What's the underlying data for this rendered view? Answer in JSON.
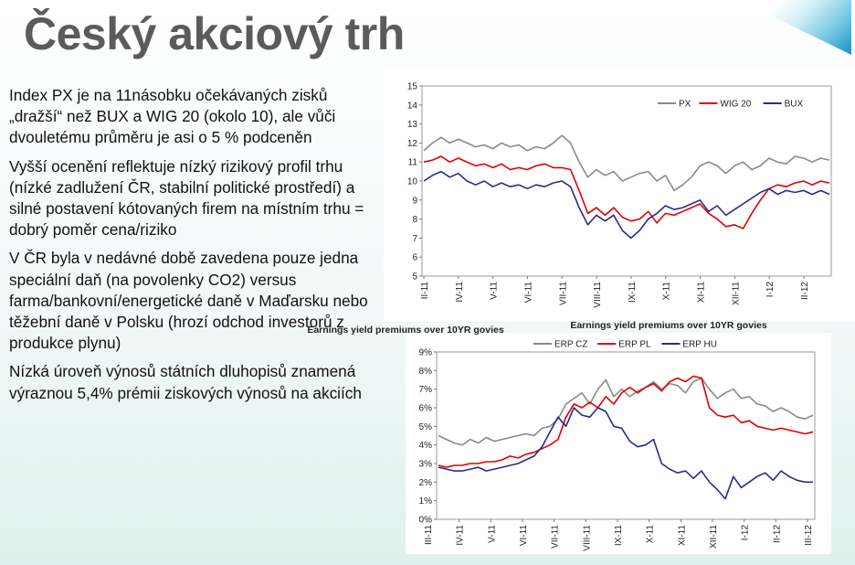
{
  "slide": {
    "title": "Český akciový trh",
    "bullets": [
      "Index PX je na 11násobku očekávaných zisků „dražší“ než BUX a WIG 20 (okolo 10), ale vůči dvouletému průměru je asi o 5 % podceněn",
      "Vyšší ocenění reflektuje nízký rizikový profil trhu (nízké zadlužení ČR, stabilní politické prostředí) a silné postavení kótovaných firem na místním trhu = dobrý poměr cena/riziko",
      "V ČR byla v nedávné době zavedena pouze jedna speciální daň (na povolenky CO2) versus farma/bankovní/energetické daně v Maďarsku nebo těžební daně v Polsku (hrozí odchod investorů z produkce plynu)",
      "Nízká úroveň výnosů státních dluhopisů znamená výraznou 5,4% prémii ziskových výnosů na akciích"
    ]
  },
  "colors": {
    "grey_series": "#8a8a8a",
    "red_series": "#e00000",
    "blue_series": "#2a2a8a",
    "title": "#5b5b5b"
  },
  "chart_data": [
    {
      "type": "line",
      "title": "",
      "ylim": [
        5,
        15
      ],
      "y_ticks": [
        "5",
        "6",
        "7",
        "8",
        "9",
        "10",
        "11",
        "12",
        "13",
        "14",
        "15"
      ],
      "x_ticks": [
        "II-11",
        "IV-11",
        "V-11",
        "VI-11",
        "VII-11",
        "VIII-11",
        "IX-11",
        "X-11",
        "XI-11",
        "XII-11",
        "I-12",
        "II-12"
      ],
      "legend_position": "top-right",
      "series": [
        {
          "name": "PX",
          "color": "#8a8a8a",
          "values": [
            11.6,
            12.0,
            12.3,
            12.0,
            12.2,
            12.0,
            11.8,
            11.9,
            11.7,
            12.0,
            11.8,
            11.9,
            11.6,
            11.8,
            11.7,
            12.0,
            12.4,
            12.0,
            11.0,
            10.2,
            10.6,
            10.3,
            10.5,
            10.0,
            10.2,
            10.4,
            10.5,
            10.0,
            10.3,
            9.5,
            9.8,
            10.2,
            10.8,
            11.0,
            10.8,
            10.4,
            10.8,
            11.0,
            10.6,
            10.8,
            11.2,
            11.0,
            10.9,
            11.3,
            11.2,
            11.0,
            11.2,
            11.1
          ]
        },
        {
          "name": "WIG 20",
          "color": "#e00000",
          "values": [
            11.0,
            11.1,
            11.3,
            11.0,
            11.2,
            11.0,
            10.8,
            10.9,
            10.7,
            10.9,
            10.6,
            10.7,
            10.6,
            10.8,
            10.9,
            10.7,
            10.7,
            10.6,
            9.5,
            8.3,
            8.6,
            8.2,
            8.6,
            8.1,
            7.9,
            8.0,
            8.4,
            7.8,
            8.3,
            8.2,
            8.4,
            8.6,
            8.8,
            8.3,
            8.0,
            7.6,
            7.7,
            7.5,
            8.3,
            9.0,
            9.6,
            9.8,
            9.7,
            9.9,
            10.0,
            9.8,
            10.0,
            9.9
          ]
        },
        {
          "name": "BUX",
          "color": "#2a2a8a",
          "values": [
            10.0,
            10.3,
            10.5,
            10.2,
            10.4,
            10.0,
            9.8,
            10.0,
            9.7,
            9.9,
            9.7,
            9.8,
            9.6,
            9.8,
            9.7,
            9.9,
            10.0,
            9.7,
            8.6,
            7.7,
            8.2,
            7.9,
            8.2,
            7.4,
            7.0,
            7.4,
            8.0,
            8.3,
            8.7,
            8.5,
            8.6,
            8.8,
            9.0,
            8.4,
            8.7,
            8.2,
            8.5,
            8.8,
            9.1,
            9.4,
            9.6,
            9.3,
            9.5,
            9.4,
            9.5,
            9.3,
            9.5,
            9.3
          ]
        }
      ]
    },
    {
      "type": "line",
      "title": "Earnings yield premiums over 10YR govies",
      "ylim": [
        0,
        9
      ],
      "y_ticks": [
        "0%",
        "1%",
        "2%",
        "3%",
        "4%",
        "5%",
        "6%",
        "7%",
        "8%",
        "9%"
      ],
      "x_ticks": [
        "III-11",
        "IV-11",
        "V-11",
        "VI-11",
        "VII-11",
        "VIII-11",
        "IX-11",
        "X-11",
        "XI-11",
        "XII-11",
        "I-12",
        "II-12",
        "III-12"
      ],
      "legend_position": "top",
      "series": [
        {
          "name": "ERP CZ",
          "color": "#8a8a8a",
          "values": [
            4.5,
            4.3,
            4.1,
            4.0,
            4.3,
            4.1,
            4.4,
            4.2,
            4.3,
            4.4,
            4.5,
            4.6,
            4.5,
            4.9,
            5.0,
            5.4,
            6.2,
            6.5,
            6.8,
            6.2,
            7.0,
            7.5,
            6.6,
            7.0,
            6.6,
            6.9,
            7.1,
            7.4,
            7.0,
            7.3,
            7.2,
            6.8,
            7.4,
            7.6,
            7.0,
            6.5,
            6.8,
            7.0,
            6.5,
            6.6,
            6.2,
            6.1,
            5.8,
            6.0,
            5.8,
            5.5,
            5.4,
            5.6
          ]
        },
        {
          "name": "ERP PL",
          "color": "#e00000",
          "values": [
            2.9,
            2.8,
            2.9,
            2.9,
            3.0,
            3.0,
            3.1,
            3.1,
            3.2,
            3.4,
            3.3,
            3.5,
            3.6,
            3.8,
            4.0,
            4.3,
            5.5,
            6.2,
            6.0,
            6.3,
            6.0,
            6.6,
            6.2,
            6.8,
            7.1,
            6.8,
            7.1,
            7.3,
            6.9,
            7.4,
            7.6,
            7.4,
            7.7,
            7.6,
            6.0,
            5.6,
            5.5,
            5.6,
            5.2,
            5.3,
            5.0,
            4.9,
            4.8,
            4.9,
            4.8,
            4.7,
            4.6,
            4.7
          ]
        },
        {
          "name": "ERP HU",
          "color": "#2a2a8a",
          "values": [
            2.8,
            2.7,
            2.6,
            2.6,
            2.7,
            2.8,
            2.6,
            2.7,
            2.8,
            2.9,
            3.0,
            3.2,
            3.4,
            3.9,
            4.7,
            5.5,
            5.0,
            6.0,
            5.6,
            5.5,
            6.0,
            5.8,
            5.0,
            4.9,
            4.2,
            3.9,
            4.0,
            4.3,
            3.0,
            2.7,
            2.5,
            2.6,
            2.2,
            2.6,
            2.0,
            1.6,
            1.1,
            2.3,
            1.7,
            2.0,
            2.3,
            2.5,
            2.1,
            2.6,
            2.3,
            2.1,
            2.0,
            2.0
          ]
        }
      ]
    }
  ]
}
